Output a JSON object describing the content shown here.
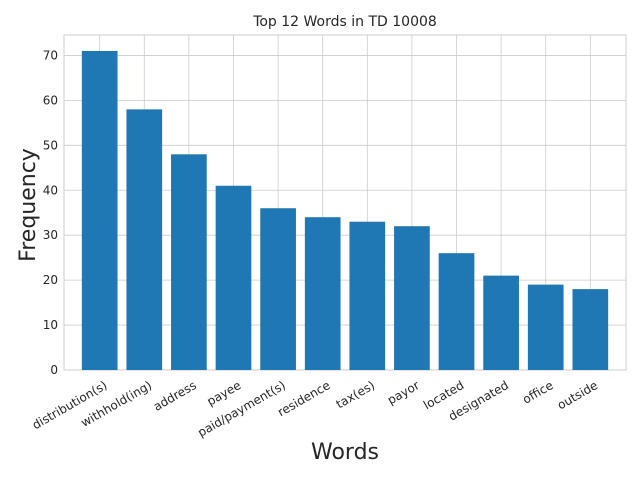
{
  "chart_data": {
    "type": "bar",
    "title": "Top 12 Words in TD 10008",
    "xlabel": "Words",
    "ylabel": "Frequency",
    "categories": [
      "distribution(s)",
      "withhold(ing)",
      "address",
      "payee",
      "paid/payment(s)",
      "residence",
      "tax(es)",
      "payor",
      "located",
      "designated",
      "office",
      "outside"
    ],
    "values": [
      71,
      58,
      48,
      41,
      36,
      34,
      33,
      32,
      26,
      21,
      19,
      18
    ],
    "ylim": [
      0,
      74.55
    ],
    "yticks": [
      0,
      10,
      20,
      30,
      40,
      50,
      60,
      70
    ],
    "grid": true,
    "bar_color": "#1f77b4"
  }
}
